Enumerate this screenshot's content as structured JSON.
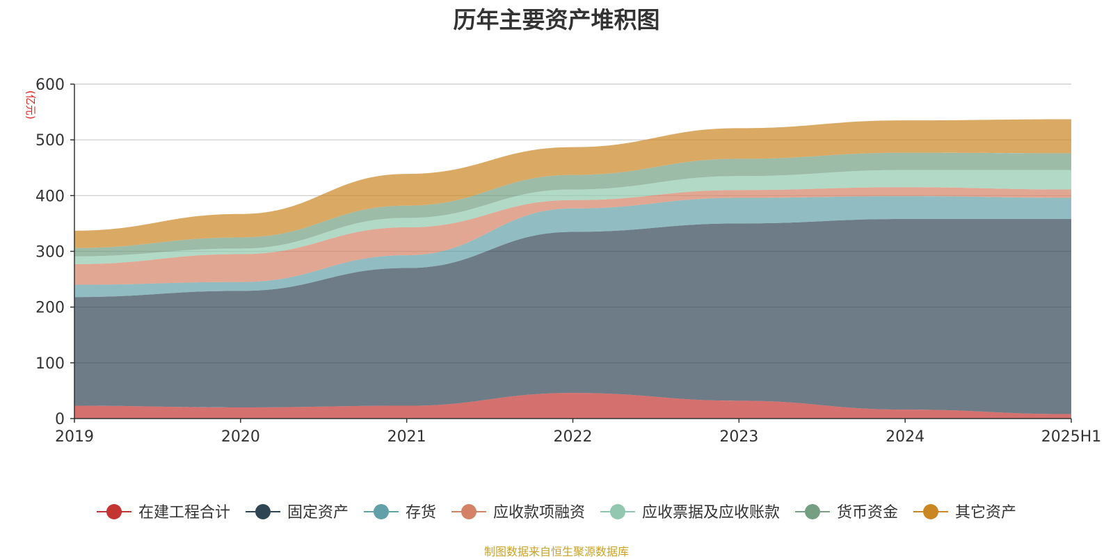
{
  "chart_data": {
    "type": "area",
    "stacked": true,
    "title": "历年主要资产堆积图",
    "unit": "(亿元)",
    "x": [
      "2019",
      "2020",
      "2021",
      "2022",
      "2023",
      "2024",
      "2025H1"
    ],
    "ylim": [
      0,
      600
    ],
    "yticks": [
      0,
      100,
      200,
      300,
      400,
      500,
      600
    ],
    "grid": true,
    "legend_position": "bottom",
    "series": [
      {
        "name": "在建工程合计",
        "color": "#c23531",
        "values": [
          23,
          20,
          23,
          46,
          32,
          16,
          8
        ]
      },
      {
        "name": "固定资产",
        "color": "#2f4554",
        "values": [
          195,
          209,
          247,
          289,
          318,
          342,
          350
        ]
      },
      {
        "name": "存货",
        "color": "#61a0a8",
        "values": [
          22,
          16,
          23,
          42,
          46,
          41,
          38
        ]
      },
      {
        "name": "应收款项融资",
        "color": "#d48265",
        "values": [
          37,
          50,
          50,
          15,
          14,
          16,
          15
        ]
      },
      {
        "name": "应收票据及应收账款",
        "color": "#91c7ae",
        "values": [
          14,
          10,
          17,
          19,
          25,
          31,
          35
        ]
      },
      {
        "name": "货币资金",
        "color": "#749f83",
        "values": [
          15,
          20,
          22,
          26,
          31,
          31,
          30
        ]
      },
      {
        "name": "其它资产",
        "color": "#ca8622",
        "values": [
          31,
          42,
          57,
          50,
          55,
          58,
          61
        ]
      }
    ]
  },
  "source": "制图数据来自恒生聚源数据库"
}
